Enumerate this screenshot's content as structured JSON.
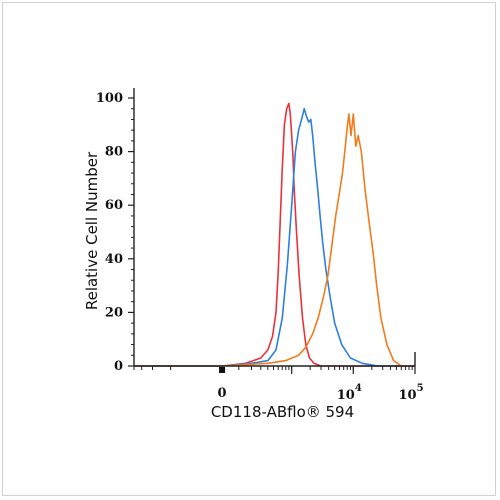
{
  "chart_data": {
    "type": "line",
    "title": "",
    "xlabel": "CD118-ABflo® 594",
    "ylabel": "Relative Cell Number",
    "x_scale": "biexponential",
    "xlim": [
      -2000,
      100000
    ],
    "ylim": [
      0,
      100
    ],
    "y_ticks": [
      {
        "value": 0,
        "label": "0"
      },
      {
        "value": 20,
        "label": "20"
      },
      {
        "value": 40,
        "label": "40"
      },
      {
        "value": 60,
        "label": "60"
      },
      {
        "value": 80,
        "label": "80"
      },
      {
        "value": 100,
        "label": "100"
      }
    ],
    "x_ticks": [
      {
        "value": 0,
        "label": "0"
      },
      {
        "value": 10000,
        "base": "10",
        "exp": "4"
      },
      {
        "value": 100000,
        "base": "10",
        "exp": "5"
      }
    ],
    "grid": false,
    "legend": "none",
    "series": [
      {
        "color": "#e8333a",
        "x": [
          -2000,
          0,
          150,
          300,
          400,
          480,
          550,
          600,
          650,
          700,
          760,
          830,
          900,
          950,
          1000,
          1050,
          1100,
          1200,
          1320,
          1500,
          1700,
          1950,
          2300,
          3000,
          5000,
          100000
        ],
        "y": [
          0,
          0,
          1,
          3,
          6,
          11,
          20,
          35,
          55,
          74,
          90,
          96,
          98,
          94,
          86,
          78,
          66,
          50,
          34,
          18,
          8,
          3,
          1,
          0,
          0,
          0
        ]
      },
      {
        "color": "#2f7fe0",
        "x": [
          -2000,
          0,
          200,
          400,
          550,
          700,
          850,
          1000,
          1150,
          1300,
          1450,
          1600,
          1750,
          1900,
          2050,
          2200,
          2400,
          2650,
          2900,
          3200,
          3600,
          4200,
          5000,
          6500,
          9000,
          14000,
          25000,
          100000
        ],
        "y": [
          0,
          0,
          1,
          2,
          6,
          18,
          38,
          60,
          80,
          88,
          92,
          96,
          93,
          91,
          92,
          86,
          76,
          66,
          56,
          46,
          36,
          26,
          16,
          8,
          3,
          1,
          0,
          0
        ]
      },
      {
        "color": "#f07c1c",
        "x": [
          -2000,
          0,
          400,
          800,
          1300,
          1700,
          2200,
          2700,
          3300,
          3900,
          4500,
          5200,
          6000,
          6700,
          7300,
          7900,
          8500,
          9200,
          10000,
          11000,
          12000,
          13500,
          15500,
          18000,
          21000,
          24000,
          28000,
          35000,
          45000,
          60000,
          100000
        ],
        "y": [
          0,
          0,
          1,
          2,
          4,
          7,
          12,
          18,
          26,
          34,
          45,
          56,
          65,
          72,
          80,
          88,
          94,
          86,
          94,
          82,
          86,
          80,
          66,
          54,
          42,
          30,
          18,
          8,
          2,
          0,
          0
        ]
      }
    ]
  }
}
